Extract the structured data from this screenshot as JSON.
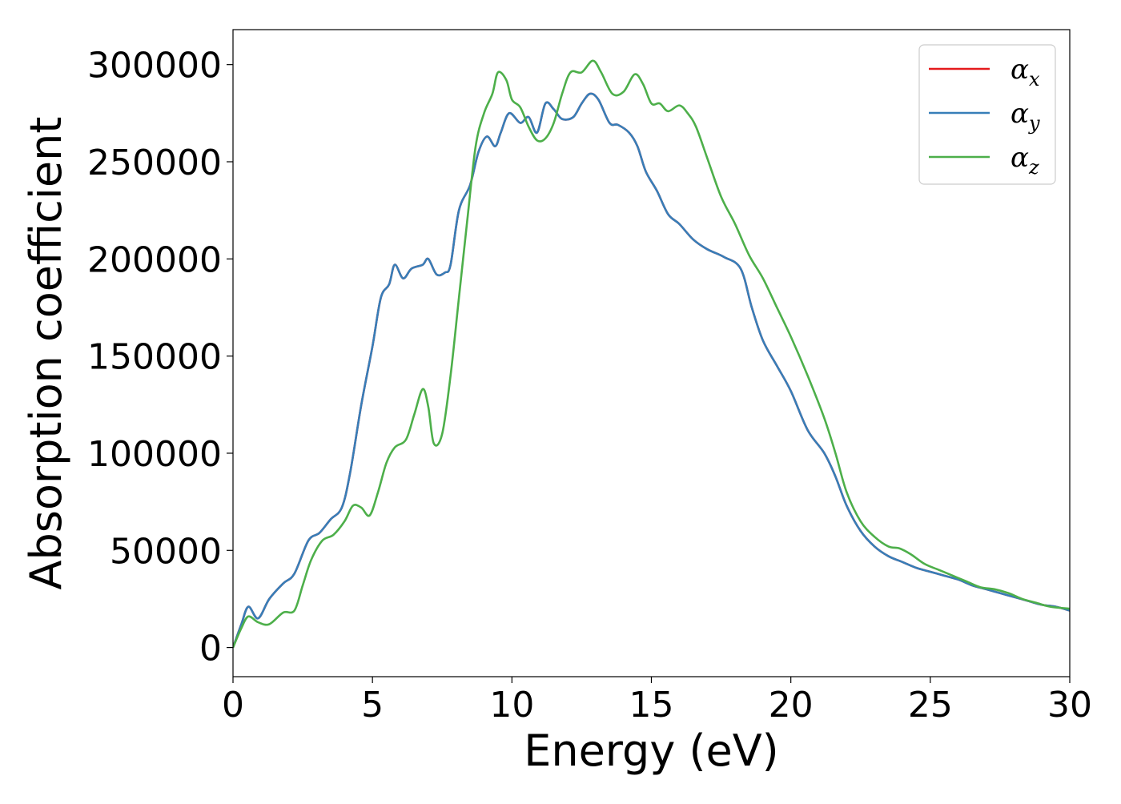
{
  "chart_data": {
    "type": "line",
    "title": "",
    "xlabel": "Energy (eV)",
    "ylabel": "Absorption coefficient",
    "xlim": [
      0,
      30
    ],
    "ylim": [
      -15000,
      318000
    ],
    "xticks": [
      0,
      5,
      10,
      15,
      20,
      25,
      30
    ],
    "yticks": [
      0,
      50000,
      100000,
      150000,
      200000,
      250000,
      300000
    ],
    "grid": false,
    "legend_position": "top-right",
    "series": [
      {
        "name": "α",
        "subscript": "x",
        "color": "#e41a1c",
        "x": [
          0,
          0.3,
          0.55,
          0.9,
          1.3,
          1.8,
          2.2,
          2.7,
          3.1,
          3.5,
          3.9,
          4.2,
          4.6,
          5.0,
          5.3,
          5.6,
          5.8,
          6.1,
          6.4,
          6.8,
          7.0,
          7.3,
          7.6,
          7.8,
          8.1,
          8.5,
          8.8,
          9.1,
          9.4,
          9.6,
          9.9,
          10.3,
          10.6,
          10.9,
          11.2,
          11.5,
          11.8,
          12.2,
          12.5,
          12.8,
          13.1,
          13.5,
          13.8,
          14.2,
          14.5,
          14.8,
          15.2,
          15.6,
          16.0,
          16.5,
          17.0,
          17.6,
          18.2,
          18.6,
          19.0,
          19.5,
          20.0,
          20.6,
          21.2,
          21.6,
          22.0,
          22.5,
          23.0,
          23.5,
          24.0,
          24.5,
          25.0,
          25.5,
          26.0,
          26.5,
          27.0,
          27.5,
          28.0,
          28.5,
          29.0,
          29.5,
          30.0
        ],
        "values": [
          0,
          12000,
          21000,
          15000,
          25000,
          33000,
          38000,
          55000,
          59000,
          66000,
          72000,
          90000,
          125000,
          155000,
          180000,
          187000,
          197000,
          190000,
          195000,
          197000,
          200000,
          192000,
          193000,
          197000,
          225000,
          238000,
          255000,
          263000,
          258000,
          265000,
          275000,
          270000,
          273000,
          265000,
          280000,
          277000,
          272000,
          273000,
          280000,
          285000,
          282000,
          270000,
          269000,
          265000,
          258000,
          245000,
          235000,
          223000,
          218000,
          210000,
          205000,
          201000,
          195000,
          175000,
          158000,
          145000,
          132000,
          112000,
          100000,
          88000,
          73000,
          60000,
          52000,
          47000,
          44000,
          41000,
          39000,
          37000,
          35000,
          32000,
          30000,
          28000,
          26000,
          24000,
          22000,
          21000,
          19000
        ]
      },
      {
        "name": "α",
        "subscript": "y",
        "color": "#377eb8",
        "x": [
          0,
          0.3,
          0.55,
          0.9,
          1.3,
          1.8,
          2.2,
          2.7,
          3.1,
          3.5,
          3.9,
          4.2,
          4.6,
          5.0,
          5.3,
          5.6,
          5.8,
          6.1,
          6.4,
          6.8,
          7.0,
          7.3,
          7.6,
          7.8,
          8.1,
          8.5,
          8.8,
          9.1,
          9.4,
          9.6,
          9.9,
          10.3,
          10.6,
          10.9,
          11.2,
          11.5,
          11.8,
          12.2,
          12.5,
          12.8,
          13.1,
          13.5,
          13.8,
          14.2,
          14.5,
          14.8,
          15.2,
          15.6,
          16.0,
          16.5,
          17.0,
          17.6,
          18.2,
          18.6,
          19.0,
          19.5,
          20.0,
          20.6,
          21.2,
          21.6,
          22.0,
          22.5,
          23.0,
          23.5,
          24.0,
          24.5,
          25.0,
          25.5,
          26.0,
          26.5,
          27.0,
          27.5,
          28.0,
          28.5,
          29.0,
          29.5,
          30.0
        ],
        "values": [
          0,
          12000,
          21000,
          15000,
          25000,
          33000,
          38000,
          55000,
          59000,
          66000,
          72000,
          90000,
          125000,
          155000,
          180000,
          187000,
          197000,
          190000,
          195000,
          197000,
          200000,
          192000,
          193000,
          197000,
          225000,
          238000,
          255000,
          263000,
          258000,
          265000,
          275000,
          270000,
          273000,
          265000,
          280000,
          277000,
          272000,
          273000,
          280000,
          285000,
          282000,
          270000,
          269000,
          265000,
          258000,
          245000,
          235000,
          223000,
          218000,
          210000,
          205000,
          201000,
          195000,
          175000,
          158000,
          145000,
          132000,
          112000,
          100000,
          88000,
          73000,
          60000,
          52000,
          47000,
          44000,
          41000,
          39000,
          37000,
          35000,
          32000,
          30000,
          28000,
          26000,
          24000,
          22000,
          21000,
          19000
        ]
      },
      {
        "name": "α",
        "subscript": "z",
        "color": "#4daf4a",
        "x": [
          0,
          0.3,
          0.55,
          0.9,
          1.3,
          1.8,
          2.2,
          2.5,
          2.8,
          3.2,
          3.6,
          4.0,
          4.3,
          4.6,
          4.9,
          5.2,
          5.5,
          5.8,
          6.2,
          6.5,
          6.8,
          7.0,
          7.2,
          7.5,
          7.8,
          8.1,
          8.4,
          8.7,
          9.0,
          9.3,
          9.5,
          9.8,
          10.0,
          10.3,
          10.6,
          10.9,
          11.2,
          11.5,
          11.8,
          12.1,
          12.5,
          12.9,
          13.2,
          13.6,
          14.0,
          14.4,
          14.7,
          15.0,
          15.3,
          15.6,
          16.0,
          16.3,
          16.6,
          17.0,
          17.5,
          18.0,
          18.5,
          19.0,
          19.5,
          20.0,
          20.6,
          21.2,
          21.6,
          22.0,
          22.5,
          23.0,
          23.5,
          23.9,
          24.3,
          24.8,
          25.3,
          25.8,
          26.3,
          26.8,
          27.3,
          27.8,
          28.3,
          28.8,
          29.3,
          30.0
        ],
        "values": [
          0,
          10000,
          16000,
          13000,
          12000,
          18000,
          19000,
          32000,
          45000,
          55000,
          58000,
          65000,
          73000,
          72000,
          68000,
          80000,
          95000,
          103000,
          107000,
          120000,
          133000,
          124000,
          105000,
          110000,
          140000,
          180000,
          220000,
          258000,
          275000,
          285000,
          296000,
          292000,
          282000,
          278000,
          268000,
          261000,
          262000,
          270000,
          285000,
          296000,
          296000,
          302000,
          296000,
          285000,
          286000,
          295000,
          290000,
          280000,
          280000,
          276000,
          279000,
          275000,
          268000,
          252000,
          232000,
          218000,
          202000,
          190000,
          175000,
          160000,
          140000,
          118000,
          100000,
          80000,
          65000,
          57000,
          52000,
          51000,
          48000,
          43000,
          40000,
          37000,
          34000,
          31000,
          30000,
          28000,
          25000,
          23000,
          21000,
          20000
        ]
      }
    ]
  }
}
